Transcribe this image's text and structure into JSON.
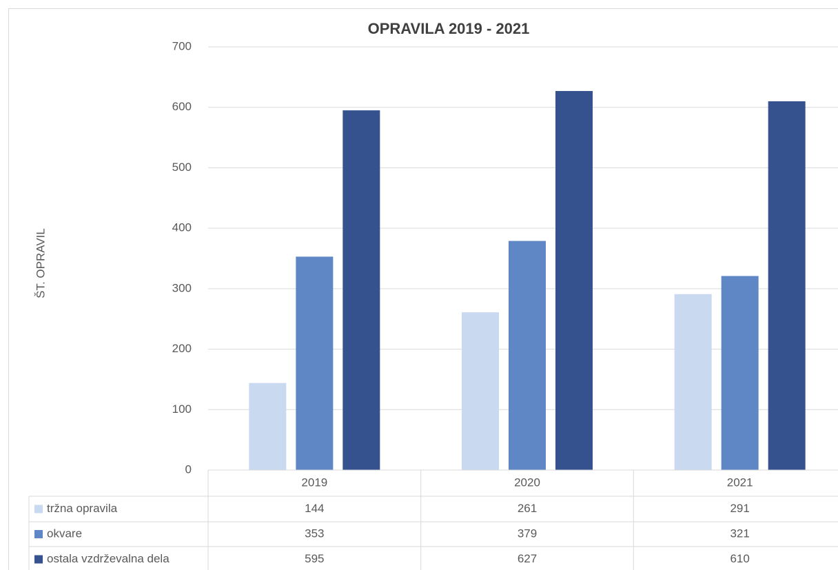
{
  "chart_data": {
    "type": "bar",
    "title": "OPRAVILA 2019 - 2021",
    "y_label": "ŠT. OPRAVIL",
    "categories": [
      "2019",
      "2020",
      "2021"
    ],
    "series": [
      {
        "name": "tržna opravila",
        "color": "#c9d9f0",
        "values": [
          144,
          261,
          291
        ]
      },
      {
        "name": "okvare",
        "color": "#5f87c6",
        "values": [
          353,
          379,
          321
        ]
      },
      {
        "name": "ostala vzdrževalna dela",
        "color": "#35528f",
        "values": [
          595,
          627,
          610
        ]
      }
    ],
    "ylim": [
      0,
      700
    ],
    "yticks": [
      0,
      100,
      200,
      300,
      400,
      500,
      600,
      700
    ],
    "grid": true,
    "data_table": true
  }
}
